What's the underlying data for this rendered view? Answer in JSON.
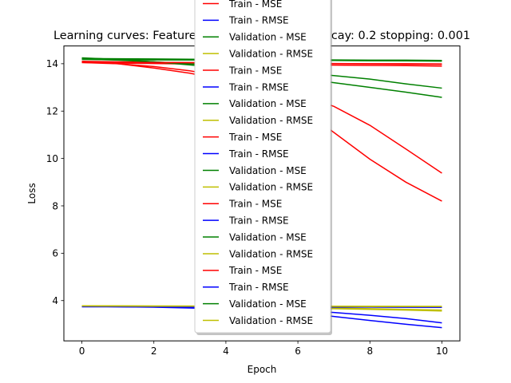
{
  "chart_data": {
    "type": "line",
    "title": "Learning curves: Features: 3 lr: 0.001 weight_decay: 0.2 stopping: 0.001",
    "xlabel": "Epoch",
    "ylabel": "Loss",
    "xlim": [
      -0.5,
      10.5
    ],
    "ylim": [
      2.3,
      14.75
    ],
    "xticks": [
      0,
      2,
      4,
      6,
      8,
      10
    ],
    "yticks": [
      4,
      6,
      8,
      10,
      12,
      14
    ],
    "grid": false,
    "legend_placement": "upper-center",
    "x": [
      0,
      1,
      2,
      3,
      4,
      5,
      6,
      7,
      8,
      9,
      10
    ],
    "series": [
      {
        "name": "Train - MSE",
        "color": "#ff0000",
        "values": [
          14.05,
          14.03,
          14.01,
          13.99,
          13.98,
          13.97,
          13.96,
          13.94,
          13.93,
          13.92,
          13.9
        ]
      },
      {
        "name": "Train - RMSE",
        "color": "#0000ff",
        "values": [
          3.75,
          3.745,
          3.742,
          3.74,
          3.737,
          3.735,
          3.732,
          3.73,
          3.728,
          3.725,
          3.72
        ]
      },
      {
        "name": "Validation - MSE",
        "color": "#008000",
        "values": [
          14.2,
          14.19,
          14.18,
          14.17,
          14.16,
          14.16,
          14.15,
          14.14,
          14.13,
          14.12,
          14.11
        ]
      },
      {
        "name": "Validation - RMSE",
        "color": "#bfbf00",
        "values": [
          3.77,
          3.768,
          3.766,
          3.764,
          3.762,
          3.76,
          3.758,
          3.756,
          3.754,
          3.752,
          3.75
        ]
      },
      {
        "name": "Train - MSE",
        "color": "#ff0000",
        "values": [
          14.1,
          14.08,
          14.06,
          14.05,
          14.04,
          14.03,
          14.02,
          14.01,
          14.0,
          14.0,
          13.99
        ]
      },
      {
        "name": "Train - RMSE",
        "color": "#0000ff",
        "values": [
          3.76,
          3.755,
          3.75,
          3.745,
          3.74,
          3.738,
          3.735,
          3.73,
          3.728,
          3.725,
          3.72
        ]
      },
      {
        "name": "Validation - MSE",
        "color": "#008000",
        "values": [
          14.22,
          14.21,
          14.2,
          14.19,
          14.18,
          14.18,
          14.17,
          14.16,
          14.15,
          14.15,
          14.14
        ]
      },
      {
        "name": "Validation - RMSE",
        "color": "#bfbf00",
        "values": [
          3.78,
          3.775,
          3.772,
          3.77,
          3.768,
          3.765,
          3.762,
          3.76,
          3.757,
          3.755,
          3.75
        ]
      },
      {
        "name": "Train - MSE",
        "color": "#ff0000",
        "values": [
          14.05,
          14.0,
          13.88,
          13.7,
          13.45,
          13.1,
          12.7,
          12.2,
          11.4,
          10.4,
          9.38
        ]
      },
      {
        "name": "Train - RMSE",
        "color": "#0000ff",
        "values": [
          3.75,
          3.745,
          3.73,
          3.71,
          3.68,
          3.64,
          3.58,
          3.5,
          3.38,
          3.24,
          3.06
        ]
      },
      {
        "name": "Validation - MSE",
        "color": "#008000",
        "values": [
          14.2,
          14.15,
          14.08,
          14.0,
          13.9,
          13.78,
          13.62,
          13.5,
          13.35,
          13.15,
          12.97
        ]
      },
      {
        "name": "Validation - RMSE",
        "color": "#bfbf00",
        "values": [
          3.77,
          3.768,
          3.76,
          3.75,
          3.74,
          3.73,
          3.71,
          3.69,
          3.66,
          3.63,
          3.6
        ]
      },
      {
        "name": "Train - MSE",
        "color": "#ff0000",
        "values": [
          14.1,
          14.0,
          13.82,
          13.6,
          13.3,
          12.85,
          12.2,
          11.1,
          9.97,
          9.0,
          8.2
        ]
      },
      {
        "name": "Train - RMSE",
        "color": "#0000ff",
        "values": [
          3.76,
          3.74,
          3.72,
          3.69,
          3.64,
          3.58,
          3.5,
          3.33,
          3.16,
          3.0,
          2.86
        ]
      },
      {
        "name": "Validation - MSE",
        "color": "#008000",
        "values": [
          14.25,
          14.18,
          14.08,
          13.95,
          13.8,
          13.6,
          13.4,
          13.2,
          13.0,
          12.8,
          12.58
        ]
      },
      {
        "name": "Validation - RMSE",
        "color": "#bfbf00",
        "values": [
          3.78,
          3.772,
          3.762,
          3.75,
          3.735,
          3.715,
          3.69,
          3.66,
          3.63,
          3.6,
          3.56
        ]
      },
      {
        "name": "Train - MSE",
        "color": "#ff0000",
        "values": [
          14.08,
          14.06,
          14.05,
          14.04,
          14.03,
          14.02,
          14.01,
          14.0,
          13.99,
          13.98,
          13.97
        ]
      },
      {
        "name": "Train - RMSE",
        "color": "#0000ff",
        "values": [
          3.74,
          3.738,
          3.736,
          3.734,
          3.732,
          3.73,
          3.728,
          3.726,
          3.724,
          3.722,
          3.72
        ]
      },
      {
        "name": "Validation - MSE",
        "color": "#008000",
        "values": [
          14.18,
          14.17,
          14.16,
          14.16,
          14.15,
          14.15,
          14.14,
          14.14,
          14.13,
          14.13,
          14.12
        ]
      },
      {
        "name": "Validation - RMSE",
        "color": "#bfbf00",
        "values": [
          3.77,
          3.767,
          3.765,
          3.763,
          3.761,
          3.759,
          3.757,
          3.755,
          3.753,
          3.751,
          3.75
        ]
      }
    ]
  }
}
